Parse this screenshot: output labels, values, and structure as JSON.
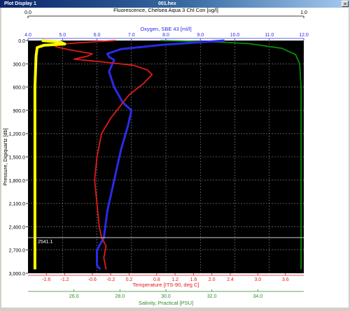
{
  "window": {
    "title": "Plot Display 1",
    "file": "001.hex",
    "close_glyph": "×"
  },
  "colors": {
    "fluorescence": "#0a8a0a",
    "oxygen": "#2a2ae8",
    "temperature": "#e01a1a",
    "salinity": "#2e8b2e",
    "salinity_trace": "#ffff00",
    "plot_bg": "#000000",
    "grid": "#888888"
  },
  "chart_data": {
    "type": "line",
    "y_axis": {
      "label": "Pressure, Digiquartz [db]",
      "range": [
        0,
        3000
      ],
      "ticks": [
        "0.0",
        "300.0",
        "600.0",
        "900.0",
        "1,200.0",
        "1,500.0",
        "1,800.0",
        "2,100.0",
        "2,400.0",
        "2,700.0",
        "3,000.0"
      ]
    },
    "x_axes": [
      {
        "id": "fluor",
        "position": "top-1",
        "label": "Fluorescence, Chelsea Aqua 3 Chl Con [ug/l]",
        "range": [
          0,
          1
        ],
        "ticks": [
          "0.0",
          "1.0"
        ],
        "tick_values": [
          0,
          1
        ]
      },
      {
        "id": "oxy",
        "position": "top-2",
        "label": "Oxygen, SBE 43 [ml/l]",
        "range": [
          4,
          12
        ],
        "ticks": [
          "4.0",
          "5.0",
          "6.0",
          "7.0",
          "8.0",
          "9.0",
          "10.0",
          "11.0",
          "12.0"
        ],
        "tick_values": [
          4,
          5,
          6,
          7,
          8,
          9,
          10,
          11,
          12
        ]
      },
      {
        "id": "temp",
        "position": "bottom-1",
        "label": "Temperature [ITS-90, deg C]",
        "range": [
          -2,
          4
        ],
        "ticks": [
          "-1.6",
          "-1.2",
          "-0.6",
          "-0.2",
          "0.2",
          "0.8",
          "1.2",
          "1.6",
          "2.0",
          "2.4",
          "3.0",
          "3.6"
        ],
        "tick_values": [
          -1.6,
          -1.2,
          -0.6,
          -0.2,
          0.2,
          0.8,
          1.2,
          1.6,
          2.0,
          2.4,
          3.0,
          3.6
        ]
      },
      {
        "id": "sal",
        "position": "bottom-2",
        "label": "Salinity, Practical [PSU]",
        "range": [
          24,
          36
        ],
        "ticks": [
          "26.0",
          "28.0",
          "30.0",
          "32.0",
          "34.0"
        ],
        "tick_values": [
          26,
          28,
          30,
          32,
          34
        ]
      }
    ],
    "cursor": {
      "pressure": 2541.1,
      "label": "2541.1"
    },
    "series": [
      {
        "name": "Fluorescence",
        "axis": "fluor",
        "color": "#0a8a0a",
        "points": [
          [
            0.48,
            0
          ],
          [
            0.6,
            10
          ],
          [
            0.7,
            20
          ],
          [
            0.8,
            40
          ],
          [
            0.92,
            100
          ],
          [
            0.97,
            180
          ],
          [
            0.985,
            300
          ],
          [
            0.99,
            600
          ],
          [
            0.99,
            1200
          ],
          [
            0.99,
            2000
          ],
          [
            0.99,
            2600
          ],
          [
            0.99,
            2950
          ]
        ]
      },
      {
        "name": "Oxygen",
        "axis": "oxy",
        "color": "#2a2ae8",
        "points": [
          [
            9.7,
            0
          ],
          [
            8.9,
            25
          ],
          [
            7.9,
            55
          ],
          [
            6.7,
            110
          ],
          [
            6.3,
            170
          ],
          [
            6.35,
            210
          ],
          [
            6.5,
            250
          ],
          [
            6.45,
            300
          ],
          [
            6.35,
            400
          ],
          [
            6.5,
            600
          ],
          [
            6.75,
            800
          ],
          [
            7.0,
            900
          ],
          [
            6.9,
            1100
          ],
          [
            6.7,
            1400
          ],
          [
            6.5,
            1800
          ],
          [
            6.3,
            2200
          ],
          [
            6.2,
            2541
          ],
          [
            6.0,
            2700
          ],
          [
            6.0,
            2900
          ],
          [
            6.1,
            2950
          ]
        ]
      },
      {
        "name": "Temperature",
        "axis": "temp",
        "color": "#e01a1a",
        "points": [
          [
            -0.1,
            0
          ],
          [
            -0.8,
            25
          ],
          [
            -1.35,
            50
          ],
          [
            -1.4,
            80
          ],
          [
            -1.1,
            120
          ],
          [
            -0.6,
            170
          ],
          [
            -0.7,
            200
          ],
          [
            -1.0,
            240
          ],
          [
            -0.3,
            280
          ],
          [
            0.3,
            320
          ],
          [
            0.6,
            380
          ],
          [
            0.7,
            440
          ],
          [
            0.5,
            560
          ],
          [
            0.2,
            700
          ],
          [
            0.0,
            850
          ],
          [
            -0.2,
            1000
          ],
          [
            -0.4,
            1200
          ],
          [
            -0.5,
            1500
          ],
          [
            -0.55,
            1800
          ],
          [
            -0.5,
            2100
          ],
          [
            -0.45,
            2400
          ],
          [
            -0.4,
            2541
          ],
          [
            -0.3,
            2650
          ],
          [
            -0.35,
            2800
          ],
          [
            -0.3,
            2950
          ]
        ]
      },
      {
        "name": "Salinity",
        "axis": "sal",
        "color": "#ffff00",
        "points": [
          [
            24.6,
            0
          ],
          [
            25.4,
            20
          ],
          [
            25.6,
            45
          ],
          [
            24.7,
            60
          ],
          [
            24.4,
            90
          ],
          [
            24.35,
            200
          ],
          [
            24.3,
            600
          ],
          [
            24.3,
            1200
          ],
          [
            24.3,
            2000
          ],
          [
            24.3,
            2600
          ],
          [
            24.3,
            2950
          ]
        ]
      }
    ]
  }
}
